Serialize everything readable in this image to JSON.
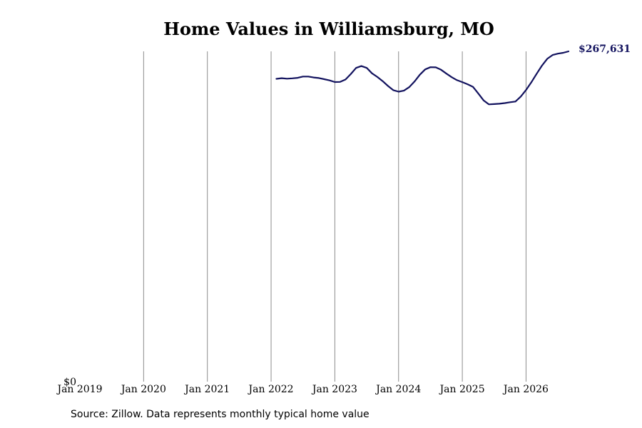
{
  "chart_data": {
    "type": "line",
    "title": "Home Values in Williamsburg, MO",
    "xlabel": "",
    "ylabel": "",
    "x_ticks": [
      "Jan 2019",
      "Jan 2020",
      "Jan 2021",
      "Jan 2022",
      "Jan 2023",
      "Jan 2024",
      "Jan 2025",
      "Jan 2026"
    ],
    "y_tick_label": "$0",
    "ylim": [
      0,
      267631
    ],
    "grid": "vertical",
    "line_color": "#12125e",
    "end_value_label": "$267,631",
    "series": [
      {
        "points": [
          [
            "2022-02",
            245400
          ],
          [
            "2022-03",
            245900
          ],
          [
            "2022-04",
            245500
          ],
          [
            "2022-05",
            245800
          ],
          [
            "2022-06",
            246200
          ],
          [
            "2022-07",
            247200
          ],
          [
            "2022-08",
            247200
          ],
          [
            "2022-09",
            246500
          ],
          [
            "2022-10",
            246000
          ],
          [
            "2022-11",
            245100
          ],
          [
            "2022-12",
            244100
          ],
          [
            "2023-01",
            242800
          ],
          [
            "2023-02",
            242900
          ],
          [
            "2023-03",
            244800
          ],
          [
            "2023-04",
            249200
          ],
          [
            "2023-05",
            254200
          ],
          [
            "2023-06",
            255700
          ],
          [
            "2023-07",
            254200
          ],
          [
            "2023-08",
            249800
          ],
          [
            "2023-09",
            246900
          ],
          [
            "2023-10",
            243500
          ],
          [
            "2023-11",
            239600
          ],
          [
            "2023-12",
            236200
          ],
          [
            "2024-01",
            235000
          ],
          [
            "2024-02",
            235800
          ],
          [
            "2024-03",
            238600
          ],
          [
            "2024-04",
            243200
          ],
          [
            "2024-05",
            248700
          ],
          [
            "2024-06",
            253000
          ],
          [
            "2024-07",
            254800
          ],
          [
            "2024-08",
            254700
          ],
          [
            "2024-09",
            252700
          ],
          [
            "2024-10",
            249600
          ],
          [
            "2024-11",
            246700
          ],
          [
            "2024-12",
            244300
          ],
          [
            "2025-01",
            242700
          ],
          [
            "2025-02",
            241000
          ],
          [
            "2025-03",
            238900
          ],
          [
            "2025-04",
            233600
          ],
          [
            "2025-05",
            227900
          ],
          [
            "2025-06",
            224700
          ],
          [
            "2025-07",
            224900
          ],
          [
            "2025-08",
            225200
          ],
          [
            "2025-09",
            225700
          ],
          [
            "2025-10",
            226400
          ],
          [
            "2025-11",
            227000
          ],
          [
            "2025-12",
            231000
          ],
          [
            "2026-01",
            236300
          ],
          [
            "2026-02",
            242600
          ],
          [
            "2026-03",
            249500
          ],
          [
            "2026-04",
            256100
          ],
          [
            "2026-05",
            261600
          ],
          [
            "2026-06",
            264700
          ],
          [
            "2026-07",
            265800
          ],
          [
            "2026-08",
            266500
          ],
          [
            "2026-09",
            267631
          ]
        ]
      }
    ]
  },
  "source_note": "Source: Zillow. Data represents monthly typical home value"
}
